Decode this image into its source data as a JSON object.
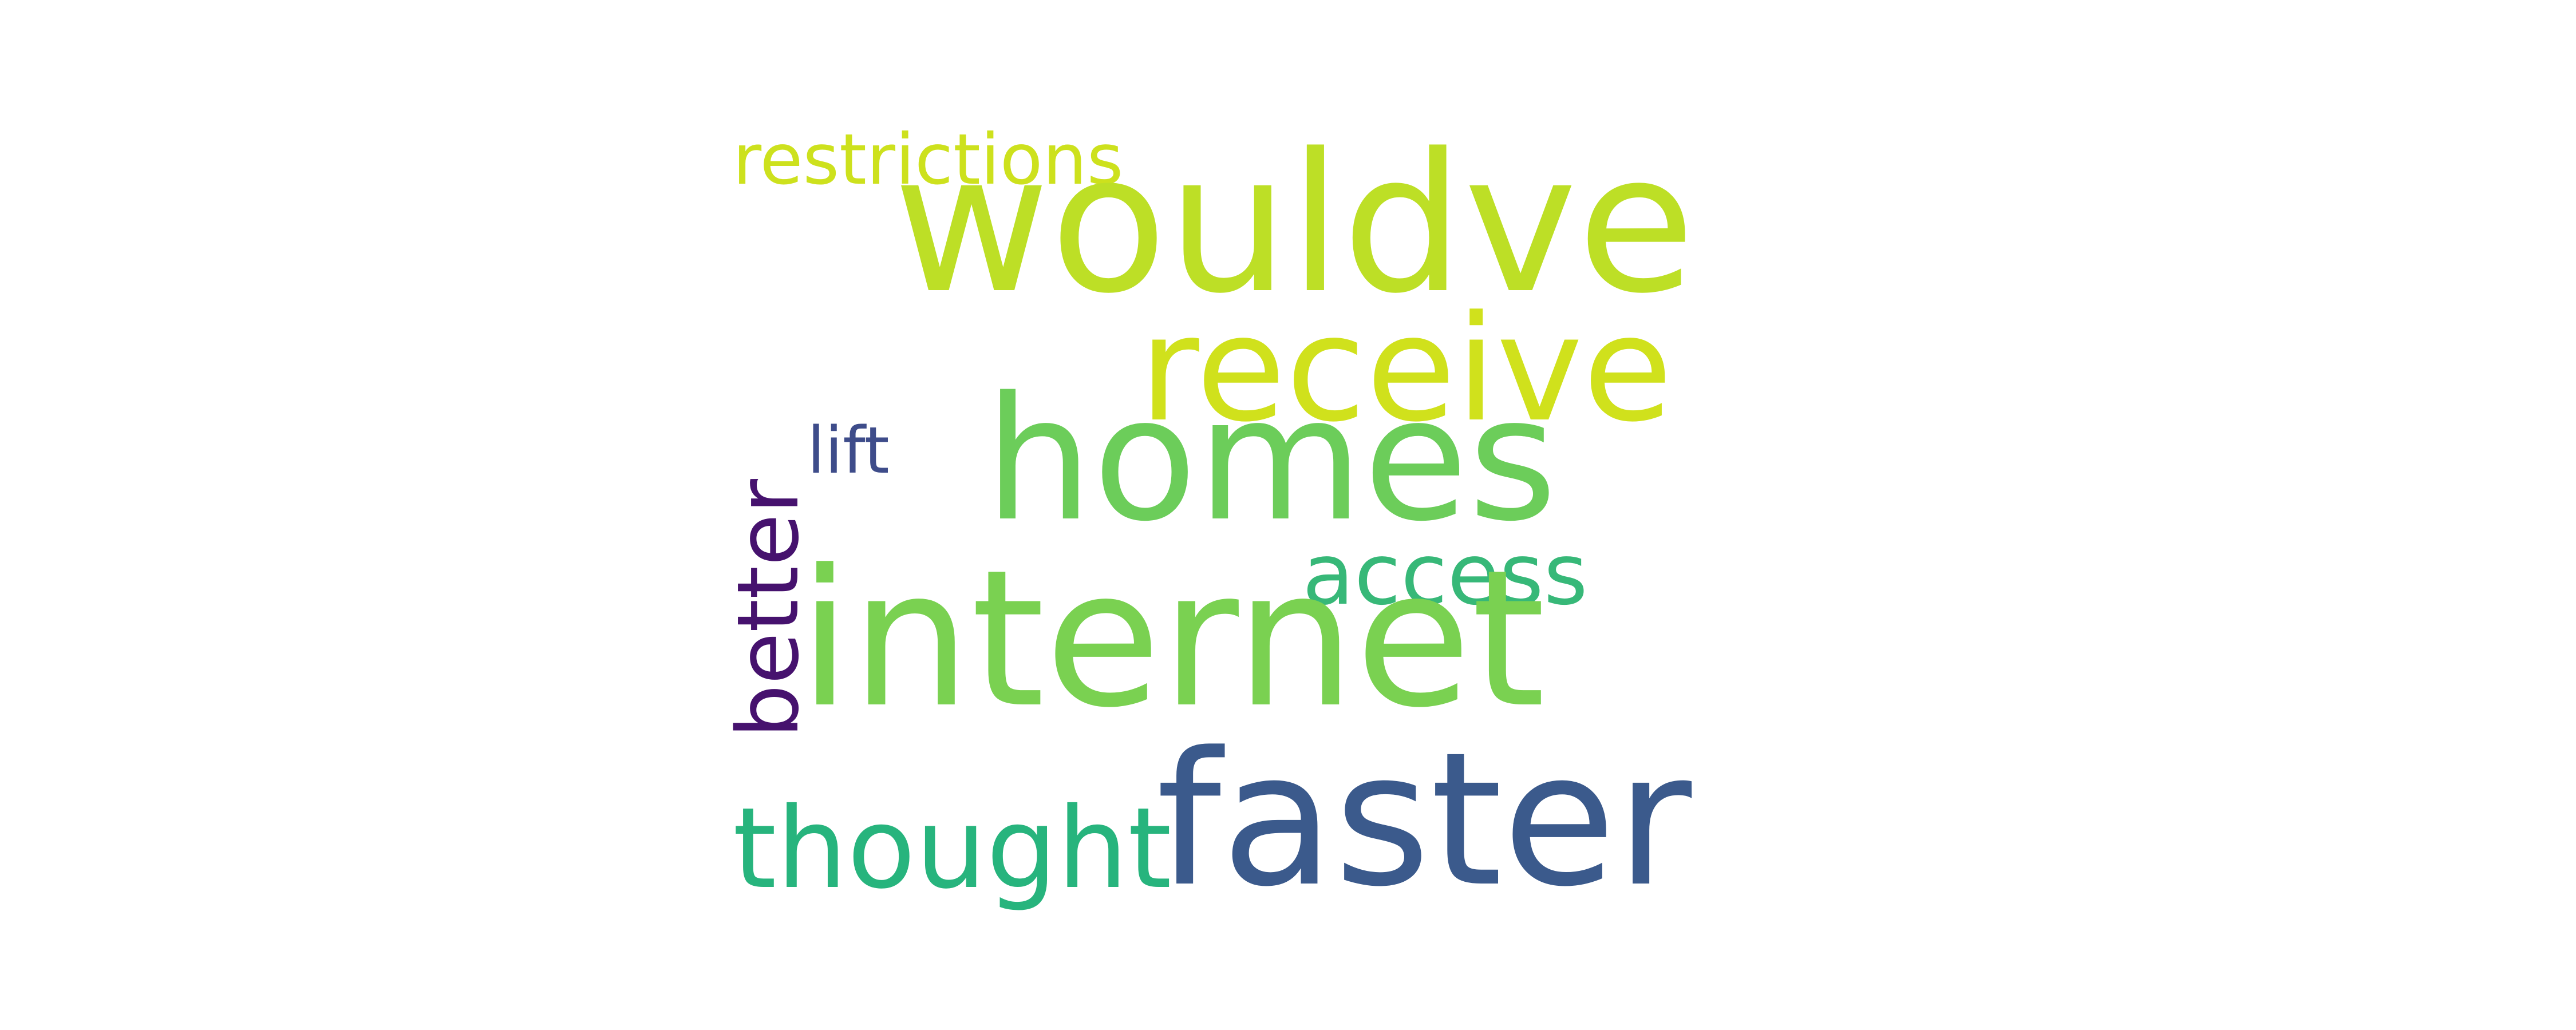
{
  "word_cloud": {
    "words": [
      {
        "id": "internet",
        "text": "internet",
        "color": "#7ad151"
      },
      {
        "id": "faster",
        "text": "faster",
        "color": "#3b5a8c"
      },
      {
        "id": "homes",
        "text": "homes",
        "color": "#6ccd5a"
      },
      {
        "id": "wouldve",
        "text": "wouldve",
        "color": "#bddf26"
      },
      {
        "id": "receive",
        "text": "receive",
        "color": "#d0e11c"
      },
      {
        "id": "thought",
        "text": "thought",
        "color": "#27b47d"
      },
      {
        "id": "access",
        "text": "access",
        "color": "#37b878"
      },
      {
        "id": "better",
        "text": "better",
        "color": "#46126e"
      },
      {
        "id": "restrictions",
        "text": "restrictions",
        "color": "#cde11d"
      },
      {
        "id": "lift",
        "text": "lift",
        "color": "#3e4c8a"
      }
    ]
  }
}
